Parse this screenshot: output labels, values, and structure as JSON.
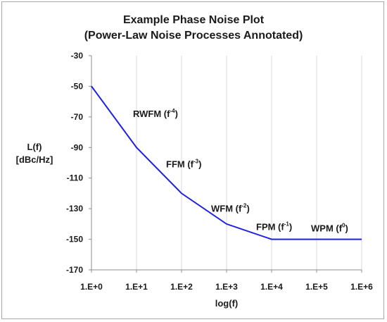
{
  "chart_data": {
    "type": "line",
    "title_lines": [
      "Example Phase Noise Plot",
      "(Power-Law Noise Processes Annotated)"
    ],
    "xlabel": "log(f)",
    "ylabel_lines": [
      "L(f)",
      "[dBc/Hz]"
    ],
    "x_tick_labels": [
      "1.E+0",
      "1.E+1",
      "1.E+2",
      "1.E+3",
      "1.E+4",
      "1.E+5",
      "1.E+6"
    ],
    "x_scale": "log10",
    "xlim": [
      1,
      1000000
    ],
    "ylim": [
      -170,
      -30
    ],
    "y_ticks": [
      -30,
      -50,
      -70,
      -90,
      -110,
      -130,
      -150,
      -170
    ],
    "grid": {
      "vertical": true,
      "horizontal": false
    },
    "legend": "none",
    "series": [
      {
        "color": "#1f1fe6",
        "x": [
          1,
          10,
          100,
          1000,
          10000,
          1000000
        ],
        "y": [
          -50,
          -90,
          -120,
          -140,
          -150,
          -150
        ]
      }
    ],
    "annotations": [
      {
        "text": "RWFM (f",
        "sup": "-4",
        "close": ")",
        "x": 10,
        "y": -70
      },
      {
        "text": "FFM (f",
        "sup": "-3",
        "close": ")",
        "x": 100,
        "y": -103
      },
      {
        "text": "WFM (f",
        "sup": "-2",
        "close": ")",
        "x": 1000,
        "y": -132
      },
      {
        "text": "FPM (f",
        "sup": "-1",
        "close": ")",
        "x": 10000,
        "y": -144
      },
      {
        "text": "WPM (f",
        "sup": "0",
        "close": ")",
        "x": 100000,
        "y": -145
      }
    ]
  }
}
